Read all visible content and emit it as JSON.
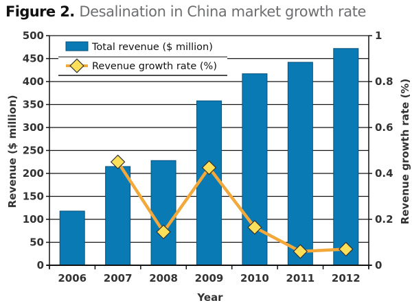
{
  "title": {
    "prefix": "Figure 2.",
    "text": "Desalination in China market growth rate"
  },
  "colors": {
    "bar": "#0a7ab4",
    "bar_edge": "#08507a",
    "line": "#f2a83a",
    "marker": "#fde05a",
    "marker_edge": "#333333",
    "grid": "#111111",
    "text": "#333333"
  },
  "chart_data": {
    "type": "bar",
    "categories": [
      "2006",
      "2007",
      "2008",
      "2009",
      "2010",
      "2011",
      "2012"
    ],
    "series": [
      {
        "name": "Total revenue ($ million)",
        "type": "bar",
        "axis": "left",
        "values": [
          118,
          215,
          228,
          358,
          417,
          442,
          472
        ]
      },
      {
        "name": "Revenue growth rate (%)",
        "type": "line",
        "axis": "right",
        "values": [
          null,
          0.45,
          0.145,
          0.425,
          0.165,
          0.06,
          0.07
        ]
      }
    ],
    "xlabel": "Year",
    "ylabel": "Revenue ($ million)",
    "y2label": "Revenue growth rate (%)",
    "ylim": [
      0,
      500
    ],
    "y2lim": [
      0,
      1
    ],
    "yticks": [
      "0",
      "50",
      "100",
      "150",
      "200",
      "250",
      "300",
      "350",
      "400",
      "450",
      "500"
    ],
    "y2ticks": [
      "0",
      "0.2",
      "0.4",
      "0.6",
      "0.8",
      "1"
    ],
    "grid": true,
    "legend": "top-left"
  }
}
